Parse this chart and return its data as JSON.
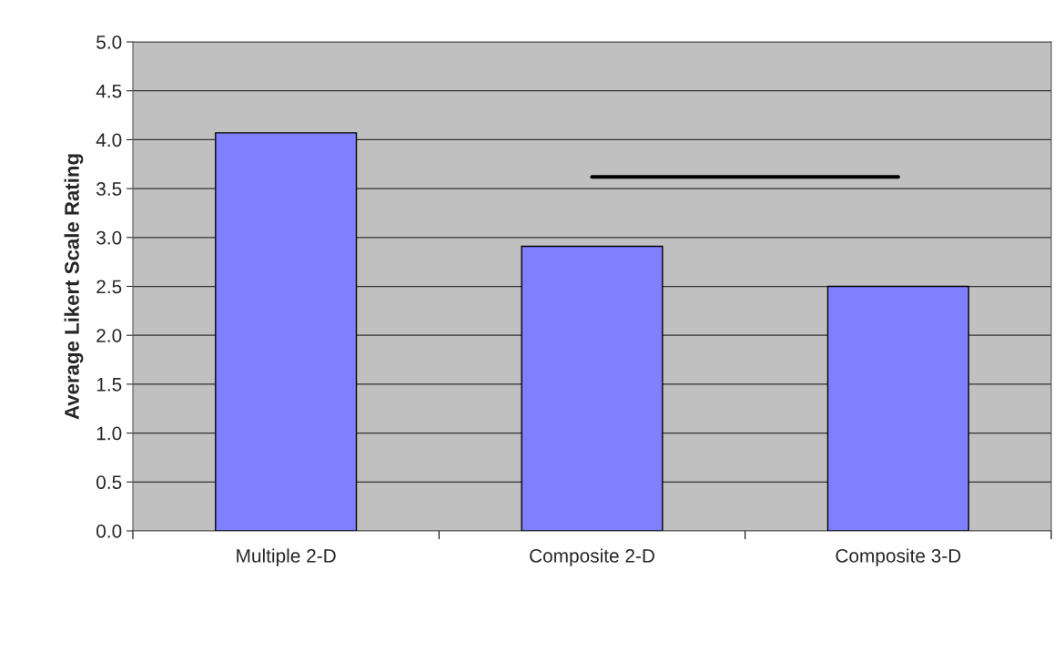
{
  "chart_data": {
    "type": "bar",
    "ylabel": "Average Likert Scale Rating",
    "categories": [
      "Multiple 2-D",
      "Composite 2-D",
      "Composite 3-D"
    ],
    "series": [
      {
        "color": "#8080ff",
        "values": [
          4.07,
          2.91,
          2.5
        ]
      },
      {
        "type": "line",
        "color": "#000000",
        "values": [
          null,
          3.62,
          3.62
        ]
      }
    ],
    "ylim": [
      0,
      5
    ],
    "yticks": [
      {
        "value": 0,
        "label": "0.0"
      },
      {
        "value": 0.5,
        "label": "0.5"
      },
      {
        "value": 1,
        "label": "1.0"
      },
      {
        "value": 1.5,
        "label": "1.5"
      },
      {
        "value": 2,
        "label": "2.0"
      },
      {
        "value": 2.5,
        "label": "2.5"
      },
      {
        "value": 3,
        "label": "3.0"
      },
      {
        "value": 3.5,
        "label": "3.5"
      },
      {
        "value": 4,
        "label": "4.0"
      },
      {
        "value": 4.5,
        "label": "4.5"
      },
      {
        "value": 5,
        "label": "5.0"
      }
    ],
    "grid": "y",
    "legend": false
  }
}
